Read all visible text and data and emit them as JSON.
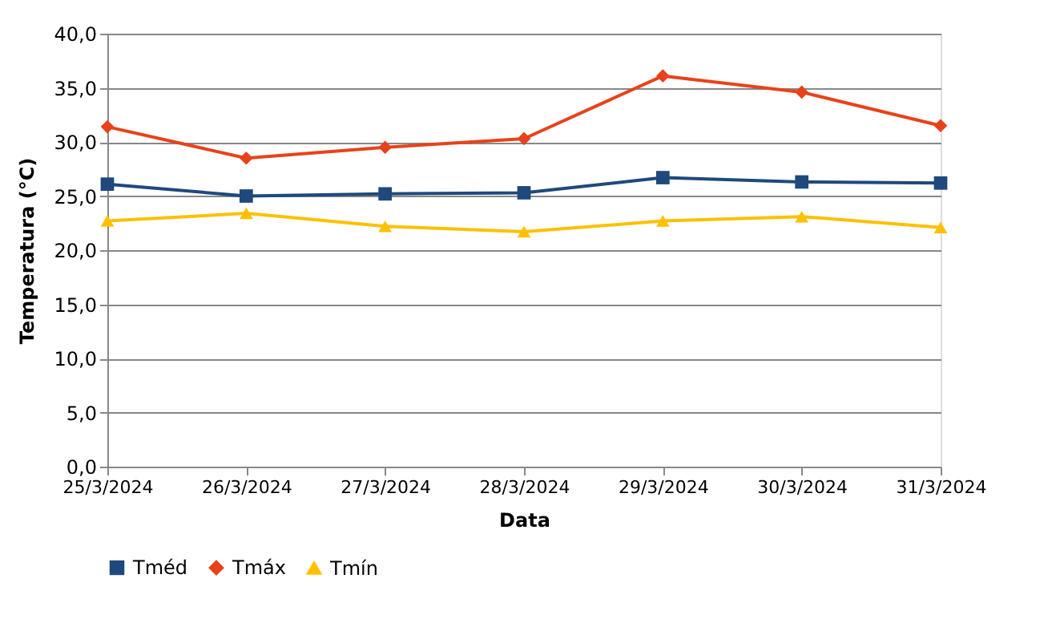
{
  "chart_data": {
    "type": "line",
    "xlabel": "Data",
    "ylabel": "Temperatura (°C)",
    "categories": [
      "25/3/2024",
      "26/3/2024",
      "27/3/2024",
      "28/3/2024",
      "29/3/2024",
      "30/3/2024",
      "31/3/2024"
    ],
    "series": [
      {
        "name": "Tméd",
        "color": "#1f497d",
        "marker": "square",
        "values": [
          26.1,
          25.0,
          25.2,
          25.3,
          26.7,
          26.3,
          26.2
        ]
      },
      {
        "name": "Tmáx",
        "color": "#e8421a",
        "marker": "diamond",
        "values": [
          31.4,
          28.5,
          29.5,
          30.3,
          36.1,
          34.6,
          31.5
        ]
      },
      {
        "name": "Tmín",
        "color": "#ffc000",
        "marker": "triangle",
        "values": [
          22.7,
          23.4,
          22.2,
          21.7,
          22.7,
          23.1,
          22.1
        ]
      }
    ],
    "ylim": [
      0,
      40
    ],
    "yticks": [
      {
        "value": 0,
        "label": "0,0"
      },
      {
        "value": 5,
        "label": "5,0"
      },
      {
        "value": 10,
        "label": "10,0"
      },
      {
        "value": 15,
        "label": "15,0"
      },
      {
        "value": 20,
        "label": "20,0"
      },
      {
        "value": 25,
        "label": "25,0"
      },
      {
        "value": 30,
        "label": "30,0"
      },
      {
        "value": 35,
        "label": "35,0"
      },
      {
        "value": 40,
        "label": "40,0"
      }
    ],
    "grid": "y",
    "legend": "bottom",
    "line_style": "solid"
  }
}
